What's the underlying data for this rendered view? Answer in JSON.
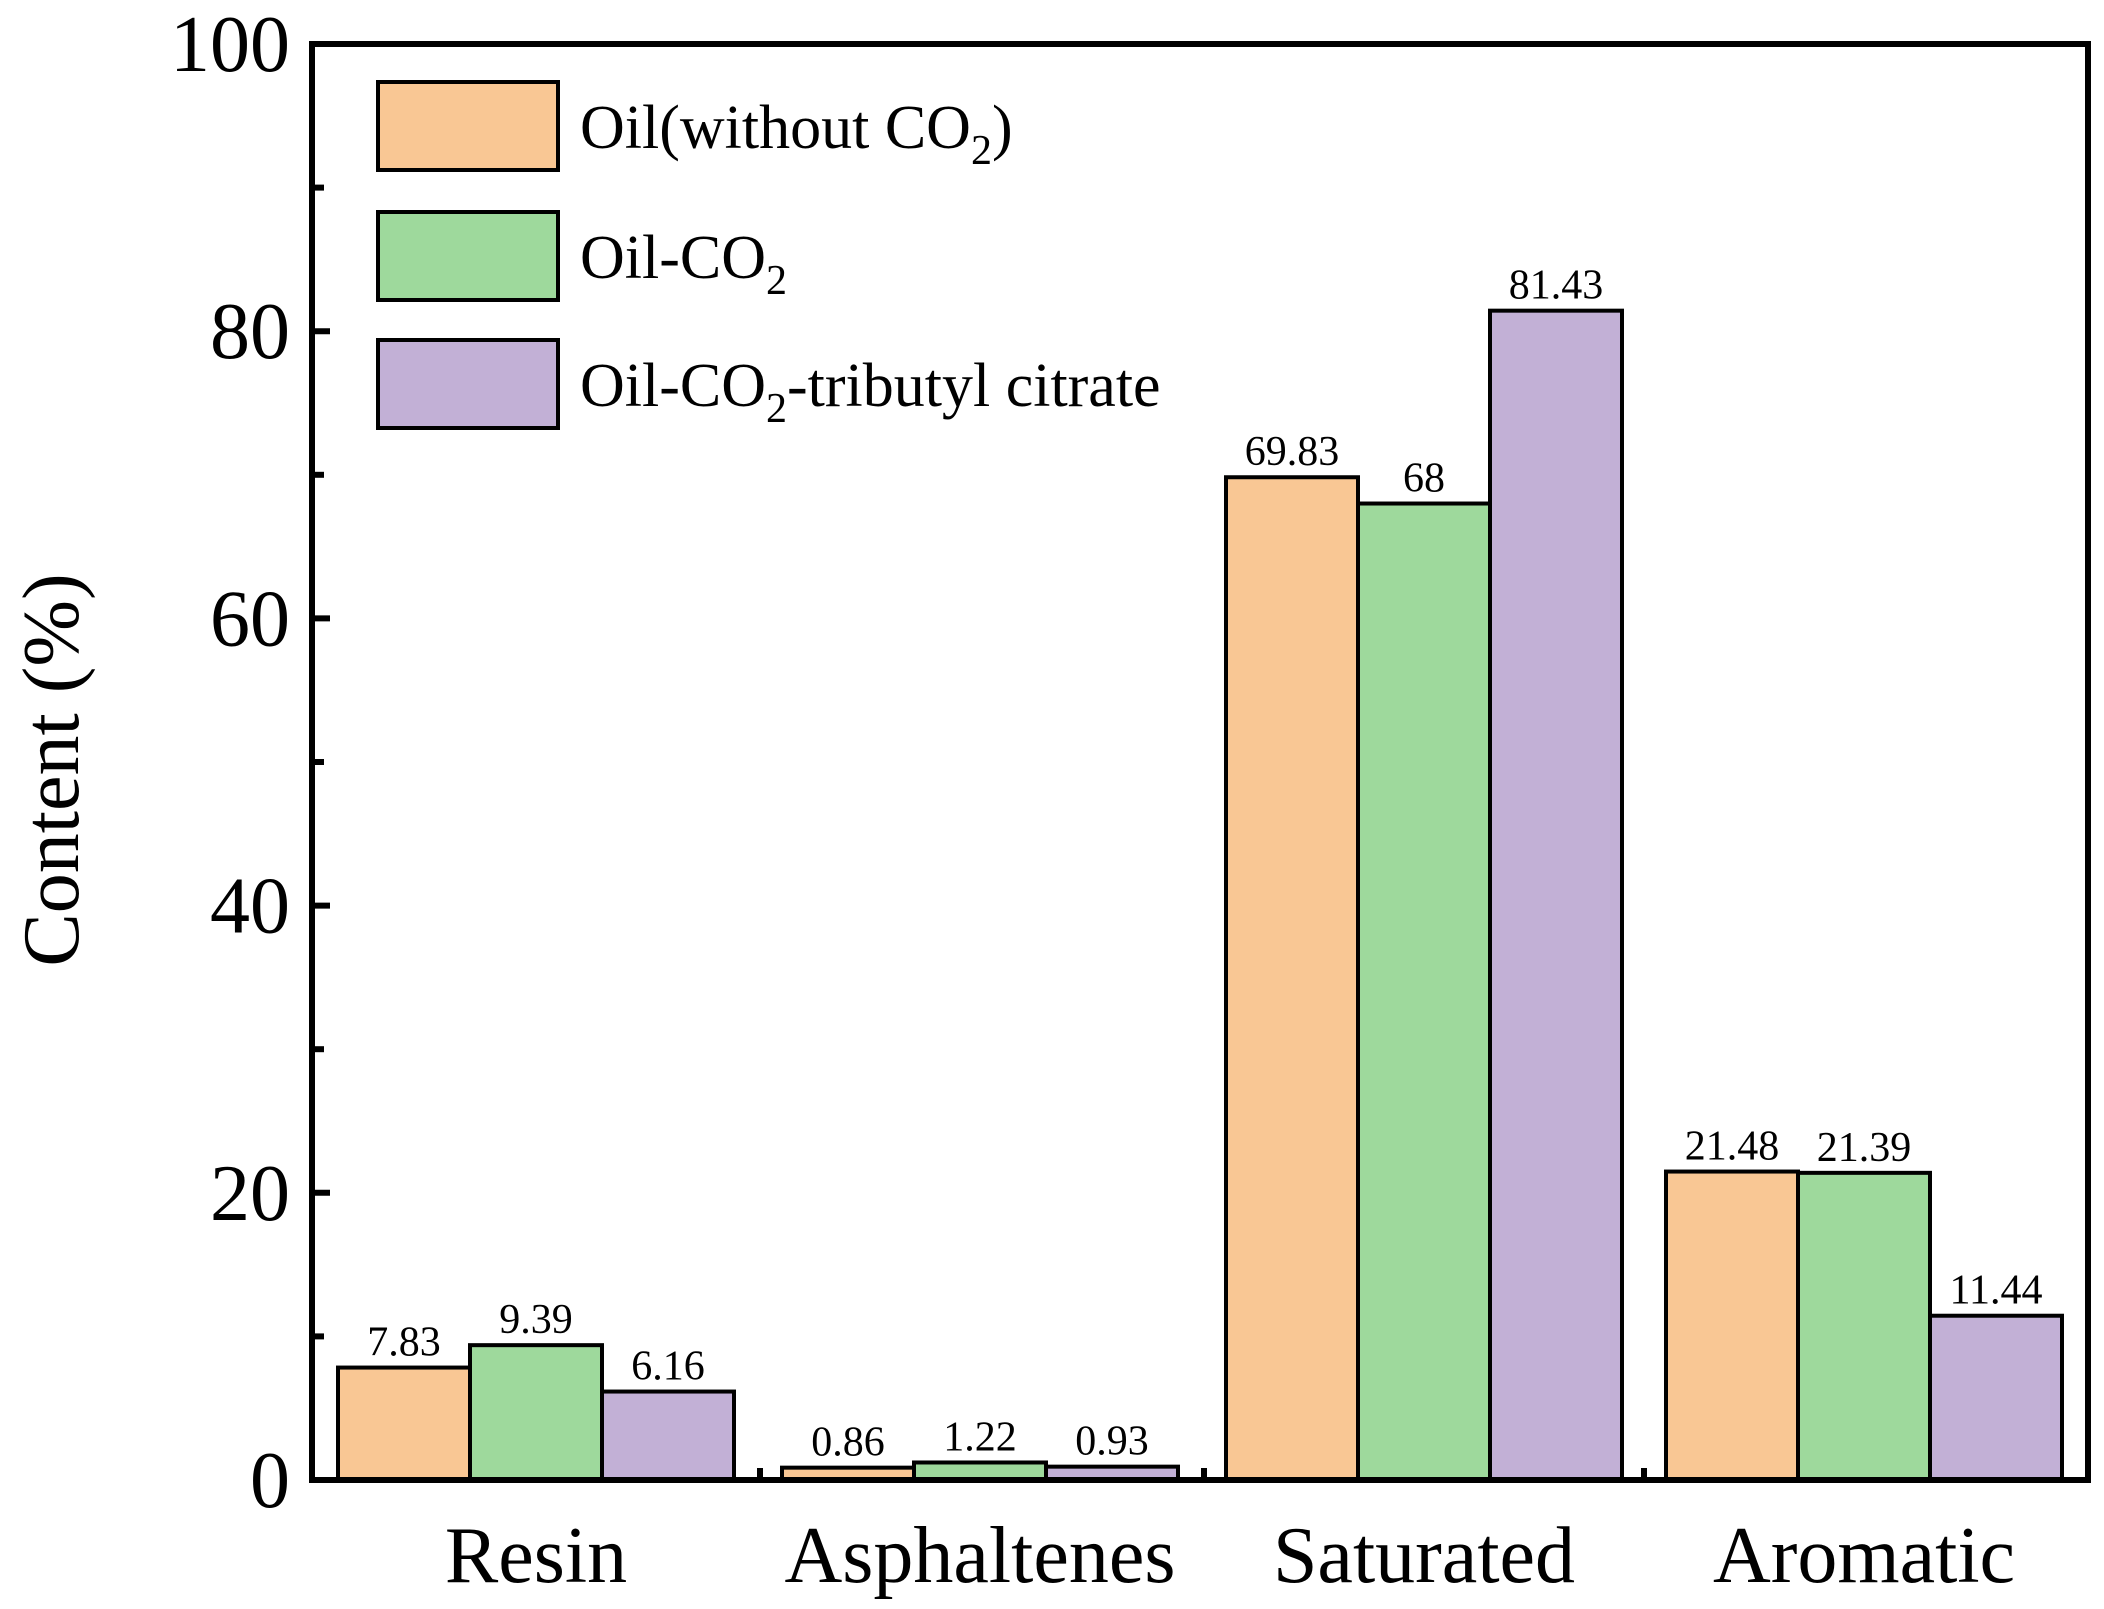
{
  "chart_data": {
    "type": "bar",
    "title": "",
    "xlabel": "",
    "ylabel": "Content (%)",
    "ylim": [
      0,
      100
    ],
    "yticks": [
      0,
      20,
      40,
      60,
      80,
      100
    ],
    "yticks_minor": [
      10,
      30,
      50,
      70,
      90
    ],
    "categories": [
      "Resin",
      "Asphaltenes",
      "Saturated",
      "Aromatic"
    ],
    "series": [
      {
        "name": "Oil(without CO2)",
        "legend_parts": [
          "Oil(without CO",
          "2",
          ")"
        ],
        "color": "#f9c794",
        "values": [
          7.83,
          0.86,
          69.83,
          21.48
        ],
        "labels": [
          "7.83",
          "0.86",
          "69.83",
          "21.48"
        ]
      },
      {
        "name": "Oil-CO2",
        "legend_parts": [
          "Oil-CO",
          "2",
          ""
        ],
        "color": "#9ed99c",
        "values": [
          9.39,
          1.22,
          68,
          21.39
        ],
        "labels": [
          "9.39",
          "1.22",
          "68",
          "21.39"
        ]
      },
      {
        "name": "Oil-CO2-tributyl citrate",
        "legend_parts": [
          "Oil-CO",
          "2",
          "-tributyl citrate"
        ],
        "color": "#c2b0d6",
        "values": [
          6.16,
          0.93,
          81.43,
          11.44
        ],
        "labels": [
          "6.16",
          "0.93",
          "81.43",
          "11.44"
        ]
      }
    ],
    "legend_position": "top-left"
  }
}
